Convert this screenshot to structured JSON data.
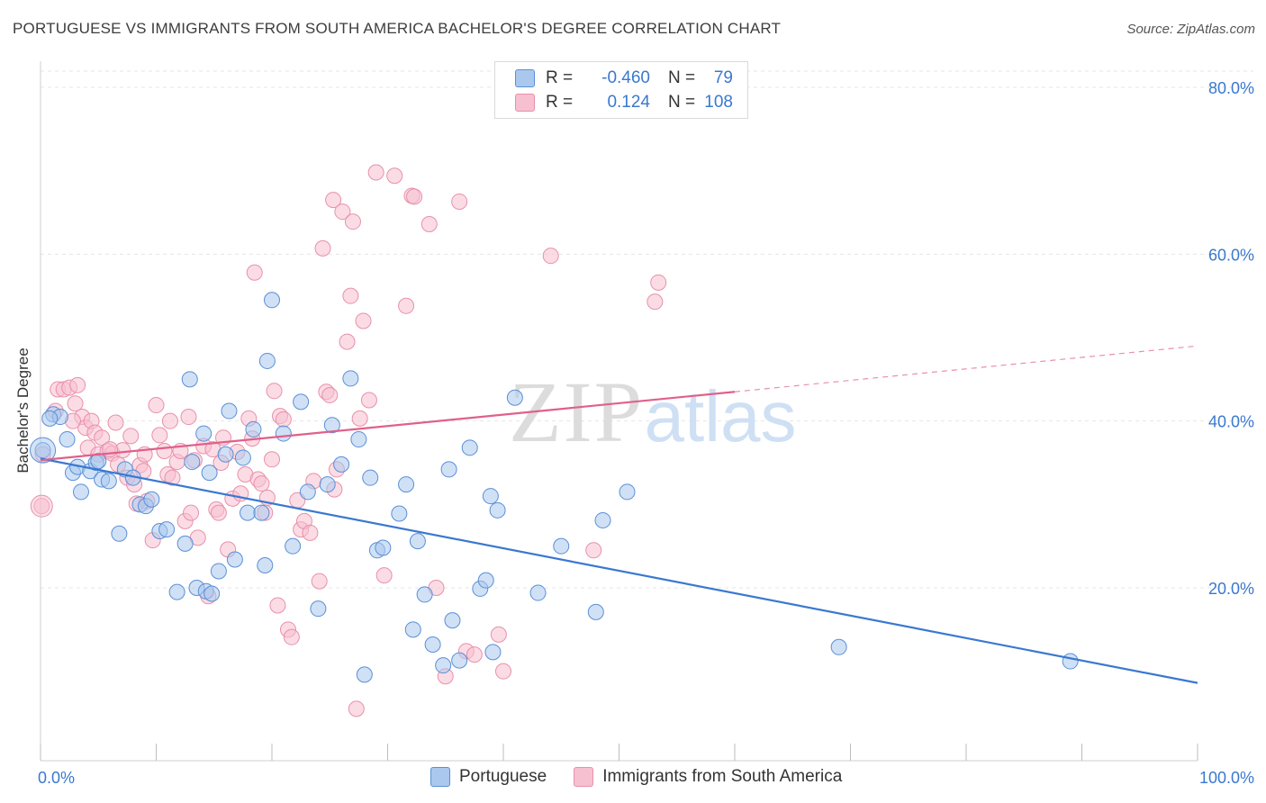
{
  "header": {
    "title": "PORTUGUESE VS IMMIGRANTS FROM SOUTH AMERICA BACHELOR'S DEGREE CORRELATION CHART",
    "source": "Source: ZipAtlas.com"
  },
  "legend": {
    "rows": [
      {
        "r_label": "R =",
        "r_value": "-0.460",
        "n_label": "N =",
        "n_value": "79"
      },
      {
        "r_label": "R =",
        "r_value": "0.124",
        "n_label": "N =",
        "n_value": "108"
      }
    ]
  },
  "bottom_legend": {
    "items": [
      {
        "label": "Portuguese"
      },
      {
        "label": "Immigrants from South America"
      }
    ]
  },
  "watermark": {
    "zip": "ZIP",
    "atlas": "atlas"
  },
  "colors": {
    "blue_fill": "#aac8ee",
    "blue_stroke": "#5a8fd6",
    "blue_line": "#3a78d0",
    "pink_fill": "#f7c0d0",
    "pink_stroke": "#e890ab",
    "pink_line": "#e0608a",
    "tick_label": "#3a78d0",
    "grid": "#e6e6e6"
  },
  "chart_data": {
    "type": "scatter",
    "title": "PORTUGUESE VS IMMIGRANTS FROM SOUTH AMERICA BACHELOR'S DEGREE CORRELATION CHART",
    "xlabel": "",
    "ylabel": "Bachelor's Degree",
    "xlim": [
      0,
      100
    ],
    "ylim": [
      0,
      82
    ],
    "x_tick_labels": [
      "0.0%",
      "100.0%"
    ],
    "y_ticks": [
      20,
      40,
      60,
      80
    ],
    "y_tick_labels": [
      "20.0%",
      "40.0%",
      "60.0%",
      "80.0%"
    ],
    "grid": true,
    "legend_position": "top-center",
    "series": [
      {
        "name": "Portuguese",
        "r": -0.46,
        "n": 79,
        "trend": {
          "x0": 0,
          "y0": 35.5,
          "x1": 100,
          "y1": 8.6
        },
        "points": [
          [
            0.2,
            36.5
          ],
          [
            1.1,
            40.8
          ],
          [
            1.7,
            40.5
          ],
          [
            2.3,
            37.8
          ],
          [
            2.8,
            33.8
          ],
          [
            3.5,
            31.5
          ],
          [
            3.2,
            34.5
          ],
          [
            4.3,
            34.0
          ],
          [
            4.8,
            35.0
          ],
          [
            5.3,
            33.0
          ],
          [
            5.9,
            32.8
          ],
          [
            6.8,
            26.5
          ],
          [
            7.3,
            34.2
          ],
          [
            8.0,
            33.2
          ],
          [
            8.6,
            30.0
          ],
          [
            9.1,
            29.8
          ],
          [
            9.6,
            30.6
          ],
          [
            10.3,
            26.8
          ],
          [
            10.9,
            27.0
          ],
          [
            11.8,
            19.5
          ],
          [
            12.5,
            25.3
          ],
          [
            12.9,
            45.0
          ],
          [
            13.5,
            20.0
          ],
          [
            14.1,
            38.5
          ],
          [
            14.3,
            19.6
          ],
          [
            14.8,
            19.3
          ],
          [
            14.6,
            33.8
          ],
          [
            15.4,
            22.0
          ],
          [
            16.0,
            36.0
          ],
          [
            16.3,
            41.2
          ],
          [
            16.8,
            23.4
          ],
          [
            17.5,
            35.6
          ],
          [
            17.9,
            29.0
          ],
          [
            18.4,
            39.0
          ],
          [
            19.1,
            29.0
          ],
          [
            19.4,
            22.7
          ],
          [
            19.6,
            47.2
          ],
          [
            20.0,
            54.5
          ],
          [
            21.0,
            38.5
          ],
          [
            21.8,
            25.0
          ],
          [
            22.5,
            42.3
          ],
          [
            23.1,
            31.5
          ],
          [
            24.0,
            17.5
          ],
          [
            24.8,
            32.4
          ],
          [
            25.2,
            39.5
          ],
          [
            26.0,
            34.8
          ],
          [
            26.8,
            45.1
          ],
          [
            27.5,
            37.8
          ],
          [
            28.0,
            9.6
          ],
          [
            28.5,
            33.2
          ],
          [
            29.1,
            24.5
          ],
          [
            29.6,
            24.8
          ],
          [
            31.0,
            28.9
          ],
          [
            31.6,
            32.4
          ],
          [
            32.2,
            15.0
          ],
          [
            32.6,
            25.6
          ],
          [
            33.2,
            19.2
          ],
          [
            33.9,
            13.2
          ],
          [
            34.8,
            10.7
          ],
          [
            35.3,
            34.2
          ],
          [
            35.6,
            16.1
          ],
          [
            36.2,
            11.3
          ],
          [
            37.1,
            36.8
          ],
          [
            38.0,
            19.9
          ],
          [
            38.5,
            20.9
          ],
          [
            38.9,
            31.0
          ],
          [
            39.5,
            29.3
          ],
          [
            39.1,
            12.3
          ],
          [
            41.0,
            42.8
          ],
          [
            43.0,
            19.4
          ],
          [
            45.0,
            25.0
          ],
          [
            48.0,
            17.1
          ],
          [
            48.6,
            28.1
          ],
          [
            50.7,
            31.5
          ],
          [
            69.0,
            12.9
          ],
          [
            89.0,
            11.2
          ],
          [
            0.8,
            40.3
          ],
          [
            5.0,
            35.2
          ],
          [
            13.1,
            35.1
          ]
        ]
      },
      {
        "name": "Immigrants from South America",
        "r": 0.124,
        "n": 108,
        "trend": {
          "x0": 0,
          "y0": 35.3,
          "x1": 60,
          "y1": 43.5,
          "dashed_to_x": 100,
          "dashed_to_y": 49.0
        },
        "points": [
          [
            0.1,
            29.8
          ],
          [
            0.2,
            36.0
          ],
          [
            1.3,
            41.2
          ],
          [
            1.5,
            43.8
          ],
          [
            2.0,
            43.8
          ],
          [
            2.5,
            44.0
          ],
          [
            3.0,
            42.1
          ],
          [
            3.2,
            44.3
          ],
          [
            3.6,
            40.5
          ],
          [
            3.9,
            39.2
          ],
          [
            4.1,
            36.8
          ],
          [
            4.4,
            40.0
          ],
          [
            4.7,
            38.6
          ],
          [
            5.0,
            36.0
          ],
          [
            5.3,
            38.0
          ],
          [
            5.8,
            36.4
          ],
          [
            6.2,
            36.1
          ],
          [
            6.5,
            39.8
          ],
          [
            6.7,
            34.8
          ],
          [
            7.1,
            36.5
          ],
          [
            7.5,
            33.2
          ],
          [
            7.8,
            38.2
          ],
          [
            8.1,
            32.4
          ],
          [
            8.3,
            30.1
          ],
          [
            8.6,
            34.7
          ],
          [
            8.9,
            34.0
          ],
          [
            9.2,
            30.4
          ],
          [
            9.7,
            25.7
          ],
          [
            10.0,
            41.9
          ],
          [
            10.3,
            38.3
          ],
          [
            10.7,
            36.4
          ],
          [
            11.0,
            33.6
          ],
          [
            11.4,
            33.2
          ],
          [
            11.8,
            35.1
          ],
          [
            12.1,
            36.4
          ],
          [
            12.5,
            28.0
          ],
          [
            12.8,
            40.5
          ],
          [
            13.0,
            29.0
          ],
          [
            13.3,
            35.3
          ],
          [
            13.6,
            26.0
          ],
          [
            14.1,
            37.0
          ],
          [
            14.5,
            19.0
          ],
          [
            14.9,
            36.6
          ],
          [
            15.2,
            29.4
          ],
          [
            15.4,
            29.0
          ],
          [
            15.6,
            35.0
          ],
          [
            15.8,
            38.0
          ],
          [
            16.2,
            24.6
          ],
          [
            16.6,
            30.7
          ],
          [
            17.0,
            36.3
          ],
          [
            17.3,
            31.3
          ],
          [
            17.7,
            33.6
          ],
          [
            18.0,
            40.3
          ],
          [
            18.3,
            37.9
          ],
          [
            18.5,
            57.8
          ],
          [
            18.8,
            33.0
          ],
          [
            19.1,
            32.5
          ],
          [
            19.4,
            29.0
          ],
          [
            19.6,
            30.8
          ],
          [
            20.0,
            35.4
          ],
          [
            20.2,
            43.6
          ],
          [
            20.5,
            17.9
          ],
          [
            20.7,
            40.6
          ],
          [
            21.0,
            40.2
          ],
          [
            21.4,
            15.0
          ],
          [
            21.7,
            14.1
          ],
          [
            22.2,
            30.5
          ],
          [
            22.5,
            27.0
          ],
          [
            22.8,
            28.0
          ],
          [
            23.3,
            26.6
          ],
          [
            23.6,
            32.8
          ],
          [
            24.1,
            20.8
          ],
          [
            24.4,
            60.7
          ],
          [
            24.7,
            43.5
          ],
          [
            25.0,
            43.1
          ],
          [
            25.3,
            66.5
          ],
          [
            25.6,
            34.2
          ],
          [
            26.1,
            65.1
          ],
          [
            26.5,
            49.5
          ],
          [
            26.8,
            55.0
          ],
          [
            27.0,
            63.9
          ],
          [
            27.3,
            5.5
          ],
          [
            27.6,
            40.3
          ],
          [
            27.9,
            52.0
          ],
          [
            28.4,
            42.5
          ],
          [
            29.0,
            69.8
          ],
          [
            29.7,
            21.5
          ],
          [
            30.6,
            69.4
          ],
          [
            31.6,
            53.8
          ],
          [
            32.1,
            67.0
          ],
          [
            32.3,
            66.9
          ],
          [
            33.6,
            63.6
          ],
          [
            34.2,
            20.0
          ],
          [
            35.0,
            9.4
          ],
          [
            36.2,
            66.3
          ],
          [
            36.8,
            12.4
          ],
          [
            37.5,
            12.0
          ],
          [
            39.6,
            14.4
          ],
          [
            40.0,
            10.0
          ],
          [
            44.1,
            59.8
          ],
          [
            47.8,
            24.5
          ],
          [
            53.1,
            54.3
          ],
          [
            53.4,
            56.6
          ],
          [
            2.8,
            40.0
          ],
          [
            9.0,
            36.0
          ],
          [
            11.2,
            40.0
          ],
          [
            6.0,
            36.6
          ],
          [
            25.4,
            31.8
          ]
        ]
      }
    ]
  }
}
